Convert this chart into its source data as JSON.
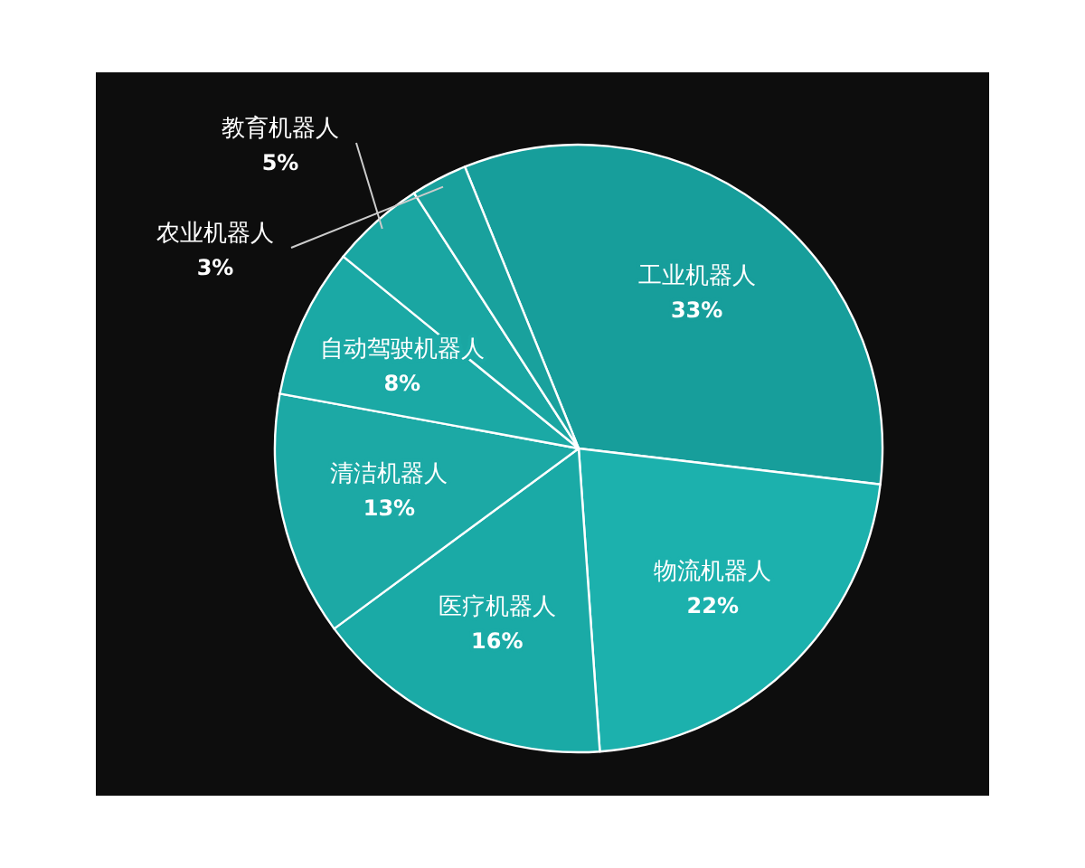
{
  "chart_data": {
    "type": "pie",
    "categories": [
      "工业机器人",
      "物流机器人",
      "医疗机器人",
      "清洁机器人",
      "自动驾驶机器人",
      "教育机器人",
      "农业机器人"
    ],
    "values": [
      33,
      22,
      16,
      13,
      8,
      5,
      3
    ],
    "colors": [
      "#179e9b",
      "#1cb1ad",
      "#1aaaa6",
      "#1ca9a5",
      "#1ba9a5",
      "#1aa6a2",
      "#19a19d"
    ],
    "value_labels": [
      "33%",
      "22%",
      "16%",
      "13%",
      "8%",
      "5%",
      "3%"
    ]
  }
}
